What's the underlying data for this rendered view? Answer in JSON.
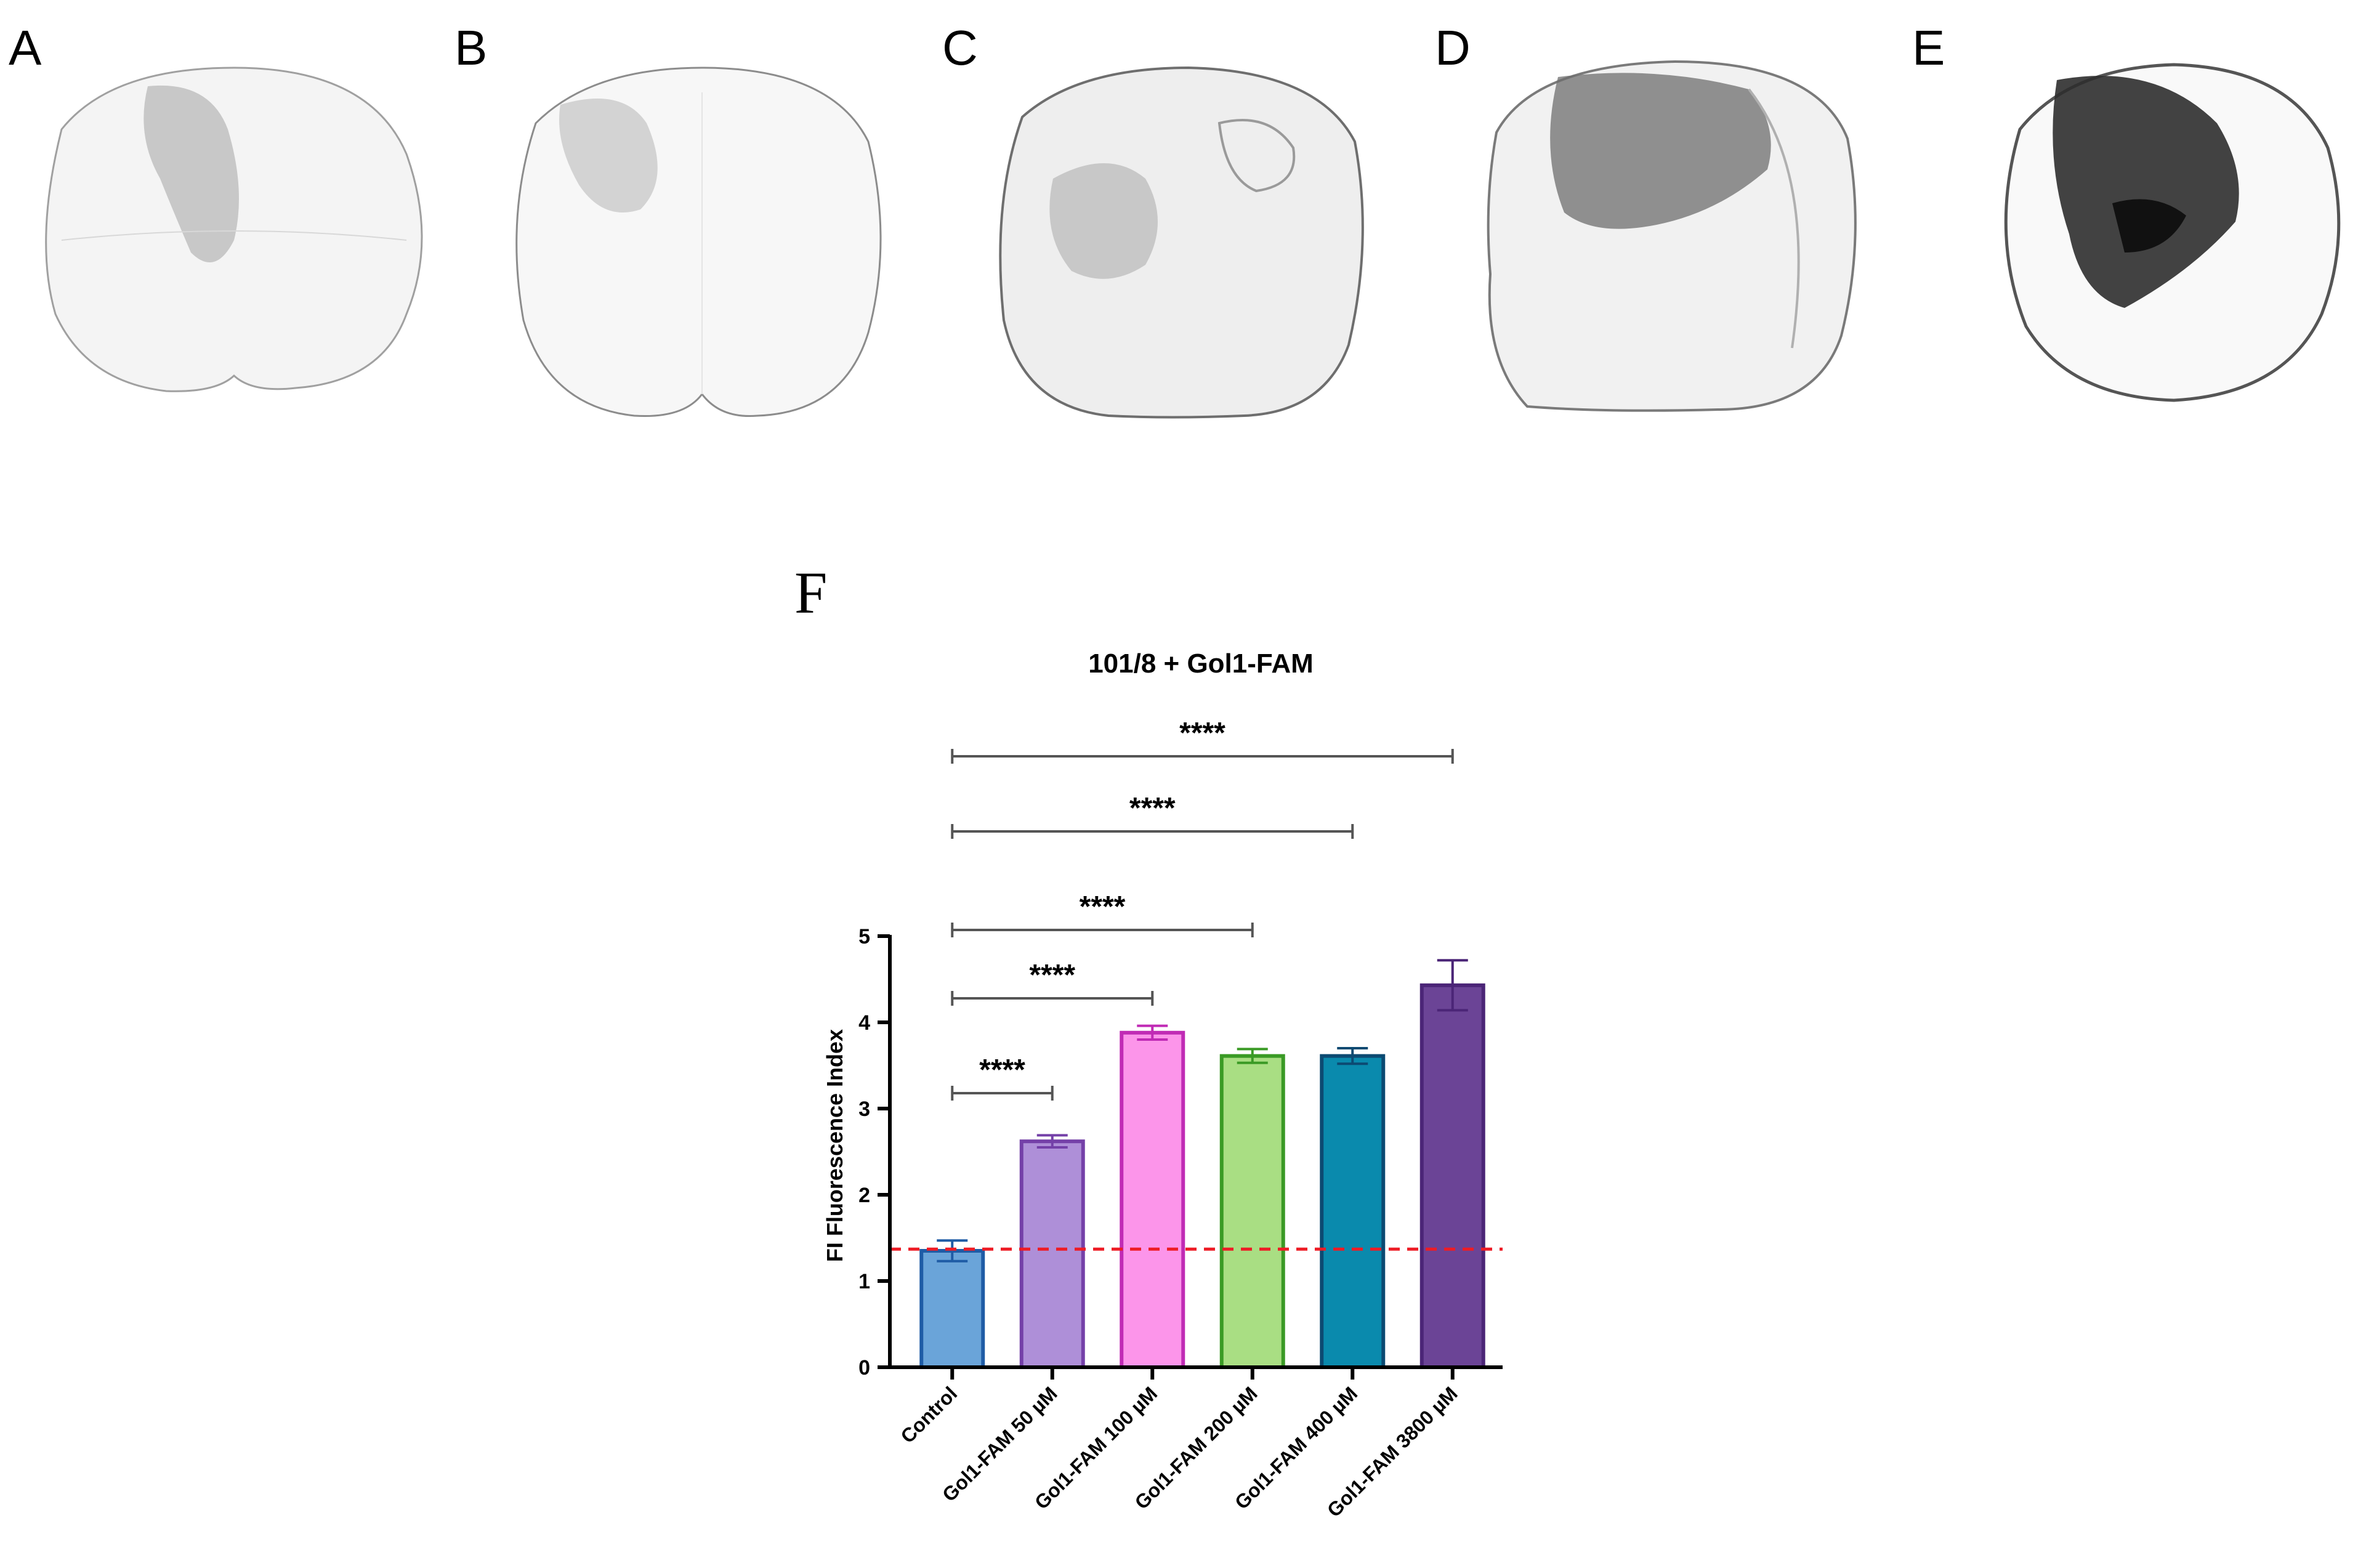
{
  "panels": {
    "A": "A",
    "B": "B",
    "C": "C",
    "D": "D",
    "E": "E",
    "F": "F"
  },
  "chart_data": {
    "type": "bar",
    "title": "101/8 + Gol1-FAM",
    "xlabel": "",
    "ylabel": "FI Fluorescence Index",
    "ylim": [
      0,
      5
    ],
    "yticks": [
      "0",
      "1",
      "2",
      "3",
      "4",
      "5"
    ],
    "categories": [
      "Control",
      "Gol1-FAM 50 µM",
      "Gol1-FAM 100 µM",
      "Gol1-FAM 200 µM",
      "Gol1-FAM 400 µM",
      "Gol1-FAM 3800 µM"
    ],
    "values": [
      1.35,
      2.62,
      3.88,
      3.61,
      3.61,
      4.43
    ],
    "errors": [
      0.12,
      0.07,
      0.08,
      0.08,
      0.09,
      0.29
    ],
    "fill_colors": [
      "#6aa4d9",
      "#ae8fd8",
      "#fc95ea",
      "#a9de83",
      "#0a8aad",
      "#6b4496"
    ],
    "stroke_colors": [
      "#1f5ca6",
      "#7440a8",
      "#c02bb5",
      "#3a9a25",
      "#0c4a72",
      "#4b2577"
    ],
    "reference_line": {
      "value": 1.37,
      "color": "#ee1c25",
      "style": "dashed"
    },
    "significance": [
      {
        "from": 0,
        "to": 1,
        "label": "****"
      },
      {
        "from": 0,
        "to": 2,
        "label": "****"
      },
      {
        "from": 0,
        "to": 3,
        "label": "****"
      },
      {
        "from": 0,
        "to": 4,
        "label": "****"
      },
      {
        "from": 0,
        "to": 5,
        "label": "****"
      }
    ],
    "grid": false
  }
}
